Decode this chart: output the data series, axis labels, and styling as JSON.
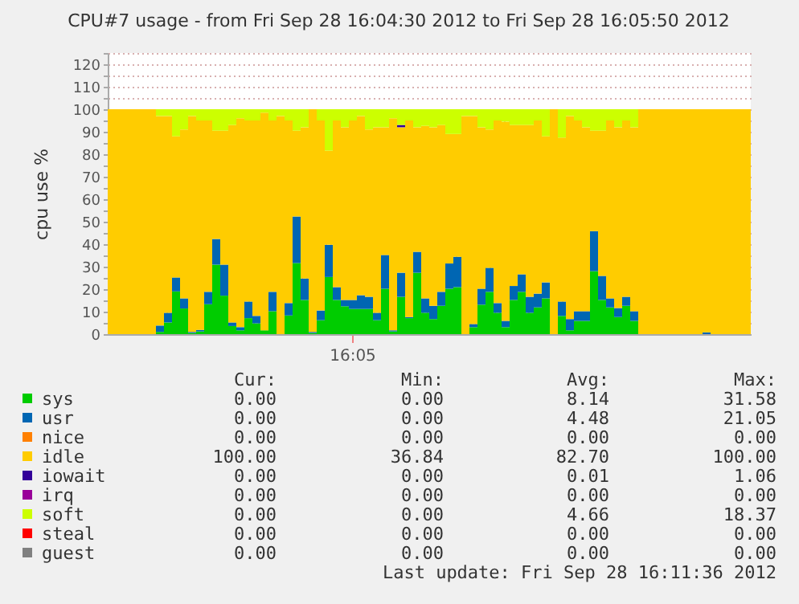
{
  "chart_data": {
    "type": "bar",
    "stacked": true,
    "title": "CPU#7 usage - from Fri Sep 28 16:04:30 2012 to Fri Sep 28 16:05:50 2012",
    "ylabel": "cpu use %",
    "categories": [
      null,
      null,
      null,
      null,
      null,
      null,
      null,
      null,
      null,
      null,
      null,
      null,
      null,
      null,
      null,
      null,
      null,
      null,
      null,
      null,
      null,
      null,
      null,
      null,
      null,
      null,
      null,
      null,
      null,
      null,
      "16:05",
      null,
      null,
      null,
      null,
      null,
      null,
      null,
      null,
      null,
      null,
      null,
      null,
      null,
      null,
      null,
      null,
      null,
      null,
      null,
      null,
      null,
      null,
      null,
      null,
      null,
      null,
      null,
      null,
      null,
      null,
      null,
      null,
      null,
      null,
      null,
      null,
      null,
      null,
      null,
      null,
      null,
      null,
      null,
      null,
      null,
      null,
      null,
      null,
      null
    ],
    "ylim": [
      0,
      125
    ],
    "yticks": [
      0,
      {
        "value": 5,
        "label": null
      },
      10,
      {
        "value": 15,
        "label": null
      },
      20,
      {
        "value": 25,
        "label": null
      },
      30,
      {
        "value": 35,
        "label": null
      },
      40,
      {
        "value": 45,
        "label": null
      },
      50,
      {
        "value": 55,
        "label": null
      },
      60,
      {
        "value": 65,
        "label": null
      },
      70,
      {
        "value": 75,
        "label": null
      },
      80,
      {
        "value": 85,
        "label": null
      },
      90,
      {
        "value": 95,
        "label": null
      },
      100,
      {
        "value": 105,
        "label": null
      },
      110,
      {
        "value": 115,
        "label": null
      },
      120,
      {
        "value": 125,
        "label": null
      }
    ],
    "grid": "y",
    "legend": "bottom",
    "series": [
      {
        "name": "sys",
        "color": "#00cc00",
        "values": [
          0,
          0,
          0,
          0,
          0,
          0,
          1,
          5.2,
          19,
          11.4,
          0.5,
          1.2,
          13.3,
          30.9,
          17.1,
          3.6,
          1.7,
          7.1,
          4.8,
          1.7,
          10.2,
          0,
          8.3,
          31.6,
          15.2,
          0.5,
          6.2,
          25.4,
          15.2,
          12.4,
          11.2,
          11.2,
          11.2,
          6.2,
          20.2,
          1.2,
          16.6,
          7.1,
          27.3,
          9.5,
          6.7,
          12.6,
          20.2,
          20.9,
          0,
          3.1,
          13.1,
          18.8,
          9.5,
          3.1,
          15.2,
          18.8,
          9.5,
          11.9,
          15.9,
          0,
          8.1,
          1.7,
          5.9,
          5.9,
          28,
          15.2,
          11.9,
          7.6,
          12.6,
          5.9,
          0,
          0,
          0,
          0,
          0,
          0,
          0,
          0,
          0,
          0,
          0,
          0,
          0,
          0
        ]
      },
      {
        "name": "usr",
        "color": "#0066b3",
        "values": [
          0,
          0,
          0,
          0,
          0,
          0,
          2.8,
          4.3,
          6.2,
          4.5,
          0.5,
          0.7,
          5.5,
          11.4,
          13.8,
          1.6,
          1.4,
          7.4,
          3.3,
          0,
          8.6,
          0,
          5.5,
          20.7,
          9.5,
          0.5,
          4.3,
          14.3,
          5.7,
          2.8,
          4,
          6.1,
          5.4,
          3.3,
          15,
          0.5,
          10.7,
          0.5,
          9.3,
          6.4,
          5.9,
          6.2,
          11.2,
          13.5,
          0,
          1.4,
          7.1,
          10.7,
          4.3,
          2.8,
          6.2,
          7.8,
          7.1,
          6.1,
          7.1,
          0,
          6.4,
          5,
          4.3,
          4.3,
          17.8,
          10.7,
          4,
          4,
          4,
          4.3,
          0,
          0,
          0,
          0,
          0,
          0,
          0,
          0,
          0.8,
          0,
          0,
          0,
          0,
          0
        ]
      },
      {
        "name": "nice",
        "color": "#ff8000",
        "values": [
          0,
          0,
          0,
          0,
          0,
          0,
          0,
          0,
          0,
          0,
          0,
          0,
          0,
          0,
          0,
          0,
          0,
          0,
          0,
          0,
          0,
          0,
          0,
          0,
          0,
          0,
          0,
          0,
          0,
          0,
          0,
          0,
          0,
          0,
          0,
          0,
          0,
          0,
          0,
          0,
          0,
          0,
          0,
          0,
          0,
          0,
          0,
          0,
          0,
          0,
          0,
          0,
          0,
          0,
          0,
          0,
          0,
          0,
          0,
          0,
          0,
          0,
          0,
          0,
          0,
          0,
          0,
          0,
          0,
          0,
          0,
          0,
          0,
          0,
          0,
          0,
          0,
          0,
          0,
          0
        ]
      },
      {
        "name": "idle",
        "color": "#ffcc00",
        "values": [
          100,
          100,
          100,
          100,
          100,
          100,
          93.2,
          87.5,
          62.8,
          75.1,
          96,
          93.1,
          76.2,
          48.2,
          59.6,
          87.8,
          92.9,
          80.5,
          86.9,
          96.8,
          76.2,
          97,
          81.2,
          38.2,
          67.3,
          99,
          84.5,
          41.9,
          74.1,
          76.8,
          79.8,
          79.7,
          74.4,
          82.5,
          56.8,
          94.3,
          64.7,
          87.4,
          55.4,
          76.7,
          79.4,
          74.2,
          57.6,
          54.6,
          97,
          92.5,
          71.8,
          61.5,
          81.2,
          88.6,
          71.6,
          66.4,
          76.4,
          77,
          65,
          100,
          72.9,
          90.3,
          84.8,
          81.8,
          44.7,
          64.6,
          79.1,
          80.4,
          78.4,
          81.8,
          100,
          100,
          100,
          100,
          100,
          100,
          100,
          100,
          99.2,
          100,
          100,
          100,
          100,
          100
        ]
      },
      {
        "name": "iowait",
        "color": "#330099",
        "values": [
          0,
          0,
          0,
          0,
          0,
          0,
          0,
          0,
          0,
          0,
          0,
          0,
          0,
          0,
          0,
          0,
          0,
          0,
          0,
          0,
          0,
          0,
          0,
          0,
          0,
          0,
          0,
          0,
          0,
          0,
          0,
          0,
          0,
          0,
          0,
          0,
          1,
          0,
          0,
          0,
          0,
          0,
          0,
          0,
          0,
          0,
          0,
          0,
          0,
          0,
          0,
          0,
          0,
          0,
          0,
          0,
          0,
          0,
          0,
          0,
          0,
          0,
          0,
          0,
          0,
          0,
          0,
          0,
          0,
          0,
          0,
          0,
          0,
          0,
          0,
          0,
          0,
          0,
          0,
          0
        ]
      },
      {
        "name": "irq",
        "color": "#990099",
        "values": [
          0,
          0,
          0,
          0,
          0,
          0,
          0,
          0,
          0,
          0,
          0,
          0,
          0,
          0,
          0,
          0,
          0,
          0,
          0,
          0,
          0,
          0,
          0,
          0,
          0,
          0,
          0,
          0,
          0,
          0,
          0,
          0,
          0,
          0,
          0,
          0,
          0,
          0,
          0,
          0,
          0,
          0,
          0,
          0,
          0,
          0,
          0,
          0,
          0,
          0,
          0,
          0,
          0,
          0,
          0,
          0,
          0,
          0,
          0,
          0,
          0,
          0,
          0,
          0,
          0,
          0,
          0,
          0,
          0,
          0,
          0,
          0,
          0,
          0,
          0,
          0,
          0,
          0,
          0,
          0
        ]
      },
      {
        "name": "soft",
        "color": "#ccff00",
        "values": [
          0,
          0,
          0,
          0,
          0,
          0,
          3,
          3,
          12,
          9,
          3,
          5,
          5,
          9.5,
          9.5,
          7,
          4,
          5,
          5,
          1.5,
          5,
          3,
          5,
          9.5,
          8,
          0,
          5,
          18.4,
          5,
          8,
          5,
          3,
          9,
          8,
          8,
          4,
          7,
          5,
          8,
          7.4,
          8,
          7,
          11,
          11,
          3,
          3,
          8,
          9,
          5,
          5.5,
          7,
          7,
          7,
          5,
          12,
          0,
          12.6,
          3,
          5,
          8,
          9.5,
          9.5,
          5,
          8,
          5,
          8,
          0,
          0,
          0,
          0,
          0,
          0,
          0,
          0,
          0,
          0,
          0,
          0,
          0,
          0
        ]
      },
      {
        "name": "steal",
        "color": "#ff0000",
        "values": [
          0,
          0,
          0,
          0,
          0,
          0,
          0,
          0,
          0,
          0,
          0,
          0,
          0,
          0,
          0,
          0,
          0,
          0,
          0,
          0,
          0,
          0,
          0,
          0,
          0,
          0,
          0,
          0,
          0,
          0,
          0,
          0,
          0,
          0,
          0,
          0,
          0,
          0,
          0,
          0,
          0,
          0,
          0,
          0,
          0,
          0,
          0,
          0,
          0,
          0,
          0,
          0,
          0,
          0,
          0,
          0,
          0,
          0,
          0,
          0,
          0,
          0,
          0,
          0,
          0,
          0,
          0,
          0,
          0,
          0,
          0,
          0,
          0,
          0,
          0,
          0,
          0,
          0,
          0,
          0
        ]
      },
      {
        "name": "guest",
        "color": "#808080",
        "values": [
          0,
          0,
          0,
          0,
          0,
          0,
          0,
          0,
          0,
          0,
          0,
          0,
          0,
          0,
          0,
          0,
          0,
          0,
          0,
          0,
          0,
          0,
          0,
          0,
          0,
          0,
          0,
          0,
          0,
          0,
          0,
          0,
          0,
          0,
          0,
          0,
          0,
          0,
          0,
          0,
          0,
          0,
          0,
          0,
          0,
          0,
          0,
          0,
          0,
          0,
          0,
          0,
          0,
          0,
          0,
          0,
          0,
          0,
          0,
          0,
          0,
          0,
          0,
          0,
          0,
          0,
          0,
          0,
          0,
          0,
          0,
          0,
          0,
          0,
          0,
          0,
          0,
          0,
          0,
          0
        ]
      }
    ],
    "annotations": [
      "Cur:",
      "Min:",
      "Avg:",
      "Max:",
      "0.00",
      "0.00",
      "8.14",
      "31.58",
      "0.00",
      "0.00",
      "4.48",
      "21.05",
      "0.00",
      "0.00",
      "0.00",
      "0.00",
      "100.00",
      "36.84",
      "82.70",
      "100.00",
      "0.00",
      "0.00",
      "0.01",
      "1.06",
      "0.00",
      "0.00",
      "0.00",
      "0.00",
      "0.00",
      "0.00",
      "4.66",
      "18.37",
      "0.00",
      "0.00",
      "0.00",
      "0.00",
      "0.00",
      "0.00",
      "0.00",
      "0.00",
      "Last update: Fri Sep 28 16:11:36 2012"
    ]
  }
}
